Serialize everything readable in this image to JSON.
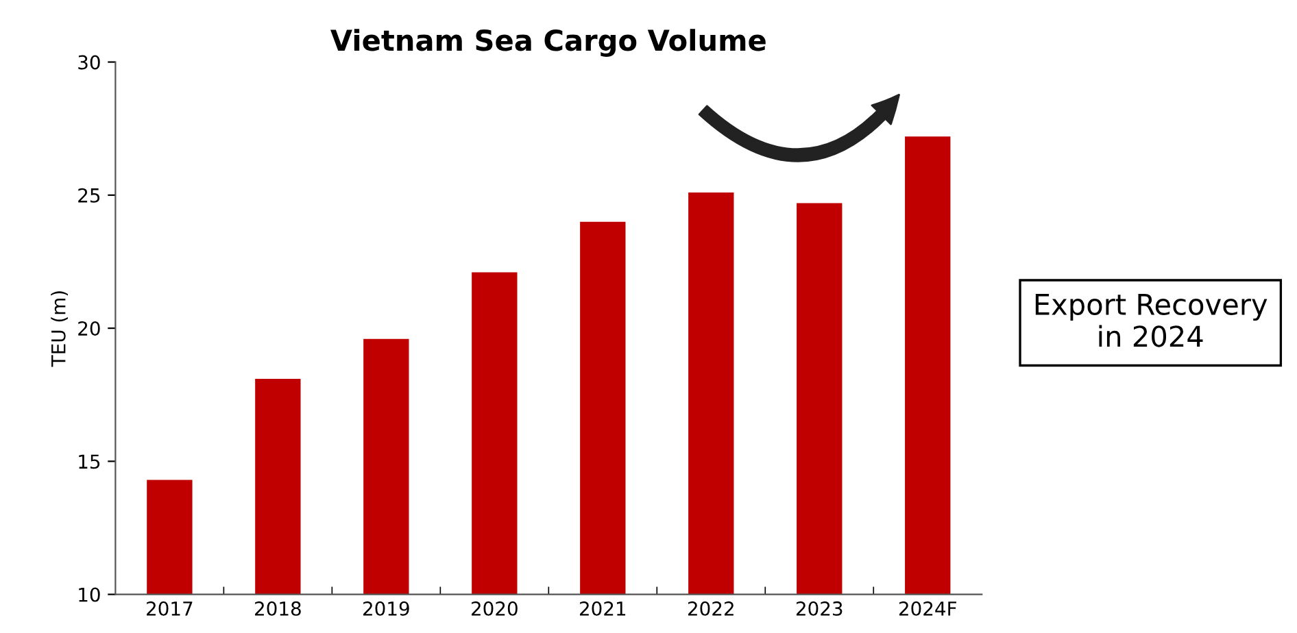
{
  "chart_data": {
    "type": "bar",
    "title": "Vietnam Sea Cargo Volume",
    "ylabel": "TEU (m)",
    "categories": [
      "2017",
      "2018",
      "2019",
      "2020",
      "2021",
      "2022",
      "2023",
      "2024F"
    ],
    "values": [
      14.3,
      18.1,
      19.6,
      22.1,
      24.0,
      25.1,
      24.7,
      27.2
    ],
    "color": "#c00000",
    "ylim": [
      10,
      30
    ],
    "yticks": [
      10,
      15,
      20,
      25,
      30
    ],
    "grid": false,
    "legend": false,
    "annotations": [
      "Export Recovery\nin 2024"
    ]
  }
}
